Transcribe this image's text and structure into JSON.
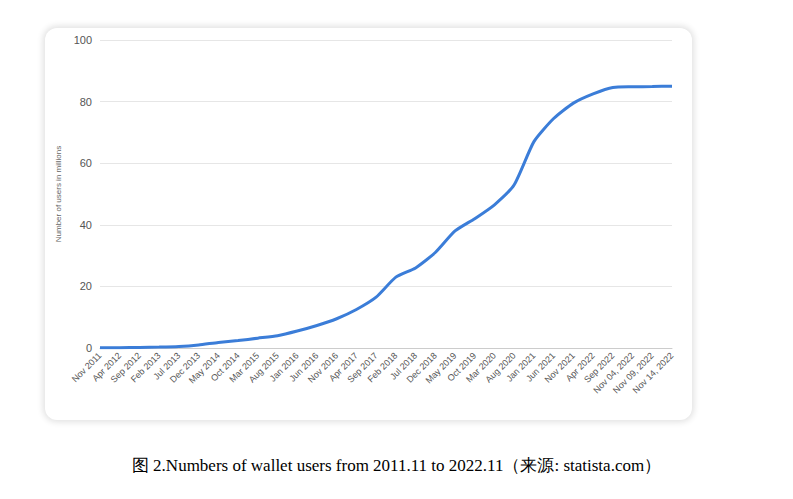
{
  "chart_data": {
    "type": "line",
    "title": "图 2.Numbers of wallet users from 2011.11 to 2022.11（来源: statista.com）",
    "ylabel": "Number of users in millions",
    "categories": [
      "Nov 2011",
      "Apr 2012",
      "Sep 2012",
      "Feb 2013",
      "Jul 2013",
      "Dec 2013",
      "May 2014",
      "Oct 2014",
      "Mar 2015",
      "Aug 2015",
      "Jan 2016",
      "Jun 2016",
      "Nov 2016",
      "Apr 2017",
      "Sep 2017",
      "Feb 2018",
      "Jul 2018",
      "Dec 2018",
      "May 2019",
      "Oct 2019",
      "Mar 2020",
      "Aug 2020",
      "Jan 2021",
      "Jun 2021",
      "Nov 2021",
      "Apr 2022",
      "Sep 2022",
      "Nov 04, 2022",
      "Nov 09, 2022",
      "Nov 14, 2022"
    ],
    "values": [
      0.1,
      0.1,
      0.2,
      0.3,
      0.5,
      1.0,
      1.8,
      2.4,
      3.2,
      4.0,
      5.5,
      7.3,
      9.5,
      12.5,
      16.5,
      23,
      26,
      31,
      38,
      42,
      46.5,
      53,
      67,
      74.5,
      79.5,
      82.5,
      84.6,
      84.8,
      84.9,
      85
    ],
    "color": "#3b7dd8",
    "ylim": [
      0,
      100
    ],
    "yticks": [
      0,
      20,
      40,
      60,
      80,
      100
    ],
    "grid": true
  }
}
